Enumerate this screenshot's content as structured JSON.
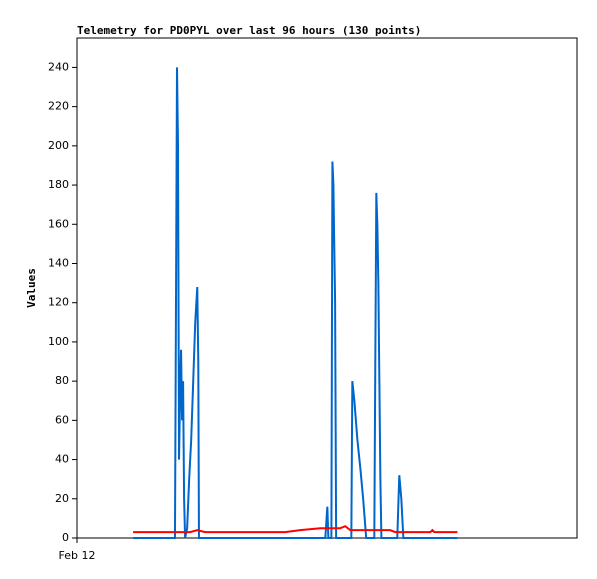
{
  "chart_data": {
    "type": "line",
    "title": "Telemetry for PD0PYL over last 96 hours (130 points)",
    "y_label": "Values",
    "xlim": [
      0,
      148
    ],
    "xticks": [
      {
        "value": 0,
        "label": "Feb 12"
      }
    ],
    "ylim": [
      0,
      255
    ],
    "yticks": [
      0,
      20,
      40,
      60,
      80,
      100,
      120,
      140,
      160,
      180,
      200,
      220,
      240
    ],
    "series": [
      {
        "color": "#0066cc",
        "x": [
          16.6,
          29.0,
          29.3,
          29.6,
          29.9,
          30.2,
          30.5,
          30.8,
          31.1,
          31.4,
          31.7,
          32.0,
          32.6,
          33.2,
          33.8,
          34.4,
          35.0,
          35.6,
          35.9,
          36.1,
          73.5,
          73.8,
          74.1,
          74.4,
          75.3,
          75.6,
          75.9,
          76.1,
          76.4,
          76.7,
          81.2,
          81.5,
          82.1,
          83.0,
          83.9,
          84.7,
          85.6,
          88.0,
          88.3,
          88.6,
          88.9,
          89.2,
          89.5,
          89.8,
          90.1,
          94.8,
          95.4,
          96.0,
          96.6,
          112.6
        ],
        "values": [
          0,
          0,
          120,
          240,
          200,
          40,
          72,
          96,
          60,
          80,
          20,
          0,
          5,
          30,
          50,
          80,
          110,
          128,
          90,
          0,
          0,
          8,
          16,
          0,
          0,
          192,
          180,
          155,
          120,
          0,
          0,
          80,
          70,
          50,
          35,
          20,
          0,
          0,
          90,
          176,
          160,
          130,
          80,
          30,
          0,
          0,
          32,
          20,
          0,
          0
        ]
      },
      {
        "color": "#ff0000",
        "x": [
          16.6,
          33.5,
          35.6,
          37.9,
          61.6,
          66.1,
          72.0,
          77.9,
          79.4,
          80.9,
          92.7,
          94.2,
          104.6,
          105.2,
          105.8,
          112.6
        ],
        "values": [
          3,
          3,
          4,
          3,
          3,
          4,
          5,
          5,
          6,
          4,
          4,
          3,
          3,
          4,
          3,
          3
        ]
      }
    ]
  }
}
